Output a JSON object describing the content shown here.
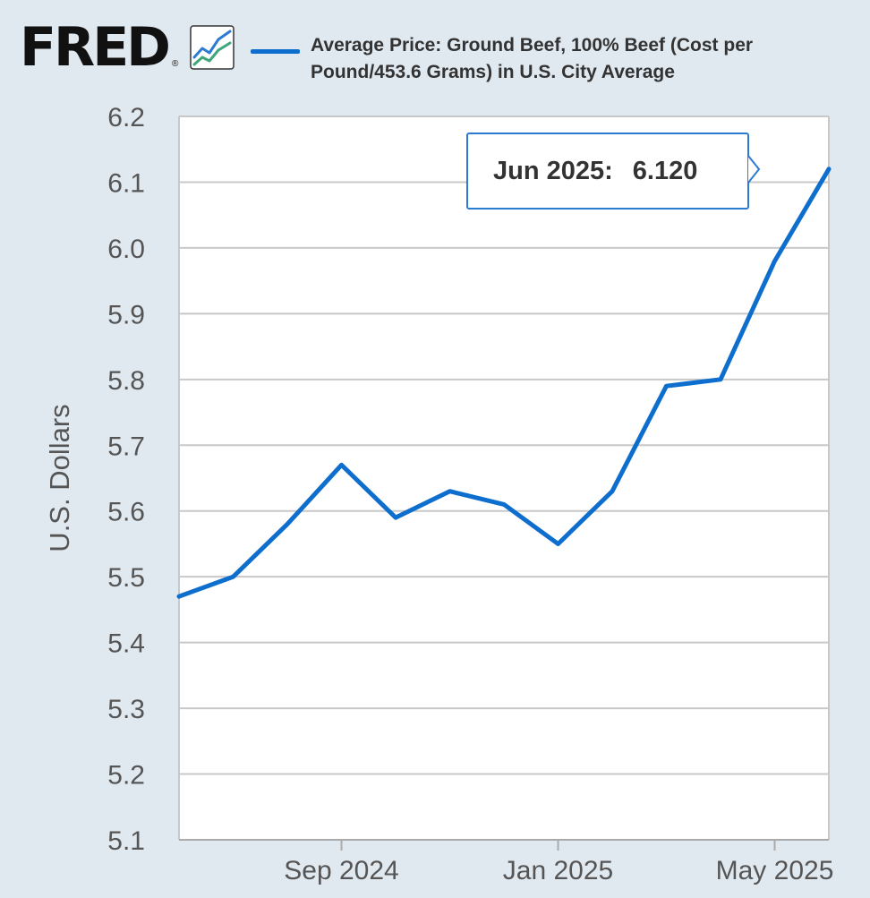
{
  "brand": {
    "logo_text": "FRED",
    "registered_mark": "®"
  },
  "colors": {
    "series": "#0d6ecd",
    "grid": "#c8c8c8",
    "background": "#e1e9f0",
    "plot_background": "#ffffff",
    "logo_icon_line_blue": "#2c7bd0",
    "logo_icon_line_green": "#3da67a"
  },
  "tooltip": {
    "date_label": "Jun 2025:",
    "value_label": "6.120"
  },
  "chart_data": {
    "type": "line",
    "title": "",
    "legend_entry": "Average Price: Ground Beef, 100% Beef (Cost per Pound/453.6 Grams) in U.S. City Average",
    "xlabel": "",
    "ylabel": "U.S. Dollars",
    "ylim": [
      5.1,
      6.2
    ],
    "yticks": [
      5.1,
      5.2,
      5.3,
      5.4,
      5.5,
      5.6,
      5.7,
      5.8,
      5.9,
      6.0,
      6.1,
      6.2
    ],
    "ytick_labels": [
      "5.1",
      "5.2",
      "5.3",
      "5.4",
      "5.5",
      "5.6",
      "5.7",
      "5.8",
      "5.9",
      "6.0",
      "6.1",
      "6.2"
    ],
    "xlim": [
      "2024-06",
      "2025-06"
    ],
    "xticks": [
      {
        "label": "Sep 2024",
        "month_index": 3
      },
      {
        "label": "Jan 2025",
        "month_index": 7
      },
      {
        "label": "May 2025",
        "month_index": 11
      }
    ],
    "grid": true,
    "series": [
      {
        "name": "Average Price: Ground Beef, 100% Beef",
        "points": [
          {
            "date": "2024-06",
            "month_index": 0,
            "value": 5.47
          },
          {
            "date": "2024-07",
            "month_index": 1,
            "value": 5.5
          },
          {
            "date": "2024-08",
            "month_index": 2,
            "value": 5.58
          },
          {
            "date": "2024-09",
            "month_index": 3,
            "value": 5.67
          },
          {
            "date": "2024-10",
            "month_index": 4,
            "value": 5.59
          },
          {
            "date": "2024-11",
            "month_index": 5,
            "value": 5.63
          },
          {
            "date": "2024-12",
            "month_index": 6,
            "value": 5.61
          },
          {
            "date": "2025-01",
            "month_index": 7,
            "value": 5.55
          },
          {
            "date": "2025-02",
            "month_index": 8,
            "value": 5.63
          },
          {
            "date": "2025-03",
            "month_index": 9,
            "value": 5.79
          },
          {
            "date": "2025-04",
            "month_index": 10,
            "value": 5.8
          },
          {
            "date": "2025-05",
            "month_index": 11,
            "value": 5.98
          },
          {
            "date": "2025-06",
            "month_index": 12,
            "value": 6.12
          }
        ]
      }
    ]
  }
}
